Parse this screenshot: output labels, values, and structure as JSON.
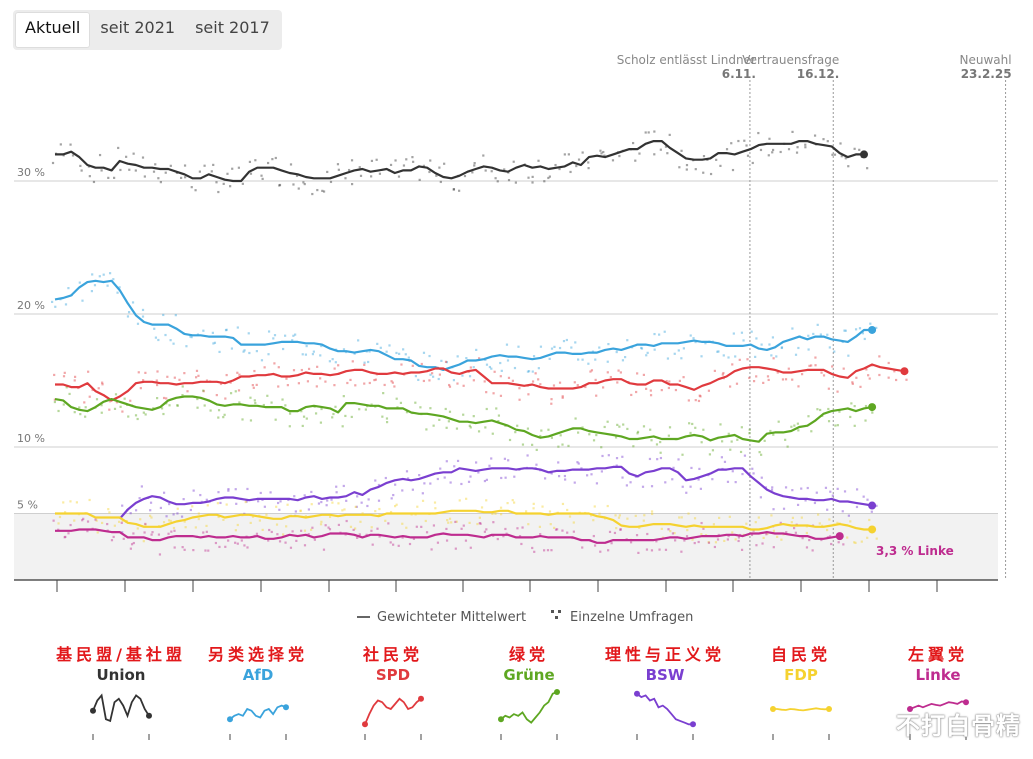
{
  "tabs": [
    {
      "label": "Aktuell",
      "active": true
    },
    {
      "label": "seit 2021",
      "active": false
    },
    {
      "label": "seit 2017",
      "active": false
    }
  ],
  "legend": {
    "line_label": "Gewichteter Mittelwert",
    "dots_label": "Einzelne Umfragen"
  },
  "end_label": "3,3 % Linke",
  "watermark": "不打白骨精",
  "chart_data": {
    "type": "line",
    "ylim": [
      0,
      33
    ],
    "y_ticks": [
      {
        "value": 5,
        "label": "5 %"
      },
      {
        "value": 10,
        "label": "10 %"
      },
      {
        "value": 20,
        "label": "20 %"
      },
      {
        "value": 30,
        "label": "30 %"
      }
    ],
    "shaded_below": 5,
    "events": [
      {
        "title": "Scholz entlässt Lindner",
        "date": "6.11.",
        "x": 0.859,
        "style": "dotted"
      },
      {
        "title": "Vertrauensfrage",
        "date": "16.12.",
        "x": 0.962,
        "style": "dotted"
      },
      {
        "title": "Neuwahl",
        "date": "23.2.25",
        "x": 1.175,
        "style": "dotted"
      }
    ],
    "series": [
      {
        "name": "Union",
        "color": "#333333",
        "values": [
          32,
          32,
          32.2,
          31.8,
          31.2,
          31,
          31,
          30.8,
          31.5,
          31.3,
          31.2,
          31,
          31,
          30.9,
          30.9,
          30.7,
          30.5,
          30.2,
          30.2,
          30.5,
          30.3,
          30.1,
          30,
          30,
          30.7,
          31,
          31,
          31,
          30.8,
          30.6,
          30.5,
          30.3,
          30.2,
          30.2,
          30.2,
          30.4,
          30.6,
          30.8,
          30.9,
          30.7,
          30.8,
          30.9,
          30.6,
          30.8,
          30.8,
          31.1,
          31,
          30.6,
          30.3,
          30.2,
          30.4,
          30.7,
          30.9,
          31.1,
          31,
          30.8,
          30.7,
          31,
          31.2,
          31,
          31.1,
          30.9,
          31,
          31.1,
          31.4,
          31.2,
          31.8,
          31.9,
          31.8,
          32,
          32.2,
          32.4,
          32.4,
          32.8,
          33,
          33,
          32.5,
          32.1,
          31.7,
          31.6,
          31.6,
          31.7,
          32.1,
          32.1,
          32,
          32.2,
          32.4,
          32.7,
          32.8,
          32.8,
          32.8,
          32.8,
          33,
          33,
          32.8,
          32.7,
          32.6,
          32.1,
          31.8,
          32,
          32
        ]
      },
      {
        "name": "AfD",
        "color": "#3aa3dc",
        "values": [
          21.1,
          21.2,
          21.4,
          22,
          22.4,
          22.5,
          22.4,
          22.5,
          21.8,
          20.8,
          19.9,
          19.4,
          19.2,
          19.2,
          19.2,
          18.9,
          18.5,
          18.4,
          18.4,
          18.3,
          18.3,
          18.3,
          18.2,
          17.7,
          17.7,
          17.7,
          17.7,
          17.8,
          17.9,
          17.9,
          17.9,
          17.8,
          17.8,
          17.7,
          17.4,
          17.2,
          17.2,
          17.1,
          17.2,
          17.3,
          17.2,
          16.9,
          16.6,
          16.6,
          16.5,
          16.1,
          16,
          16,
          15.8,
          16,
          16.2,
          16.5,
          16.5,
          16.6,
          16.8,
          16.9,
          16.8,
          16.8,
          16.7,
          16.6,
          16.7,
          16.9,
          17.1,
          17.1,
          17,
          17,
          17.1,
          17.1,
          17.3,
          17.4,
          17.3,
          17.5,
          17.7,
          17.7,
          17.6,
          17.8,
          17.8,
          17.8,
          17.9,
          18,
          17.9,
          17.9,
          17.8,
          17.6,
          17.6,
          17.6,
          17.7,
          17.4,
          17.3,
          17.5,
          17.9,
          18.1,
          18.3,
          18.1,
          18.3,
          18.3,
          18.1,
          18,
          17.9,
          18.3,
          18.8,
          18.8
        ]
      },
      {
        "name": "SPD",
        "color": "#e03a3e",
        "values": [
          14.7,
          14.7,
          14.5,
          14.5,
          14.8,
          14.2,
          13.9,
          13.5,
          13.8,
          14.2,
          14.8,
          14.9,
          14.9,
          14.8,
          14.8,
          14.7,
          14.8,
          14.8,
          14.9,
          14.9,
          14.9,
          14.8,
          15,
          15.3,
          15.3,
          15.4,
          15.4,
          15.5,
          15.3,
          15.3,
          15.4,
          15.6,
          15.5,
          15.5,
          15.4,
          15.5,
          15.7,
          15.8,
          15.8,
          15.6,
          15.5,
          15.5,
          15.6,
          15.5,
          15.6,
          15.6,
          15.7,
          15.9,
          15.9,
          15.6,
          15.5,
          15.7,
          15.8,
          15.3,
          14.8,
          14.8,
          14.8,
          14.7,
          14.6,
          14.7,
          14.5,
          14.4,
          14.4,
          14.4,
          14.4,
          14.5,
          14.8,
          14.8,
          15,
          15.1,
          15.1,
          14.8,
          14.7,
          14.7,
          15,
          15,
          14.7,
          14.7,
          14.5,
          14.3,
          14.6,
          14.8,
          15.1,
          15.3,
          15.7,
          15.9,
          16,
          16,
          15.9,
          15.8,
          15.6,
          15.6,
          15.7,
          15.8,
          15.8,
          15.8,
          15.5,
          15.3,
          15.2,
          15.7,
          15.9,
          16.2,
          16,
          15.9,
          15.8,
          15.7
        ]
      },
      {
        "name": "Grüne",
        "color": "#5ea722",
        "values": [
          13.6,
          13.5,
          13,
          12.8,
          12.7,
          13,
          13.4,
          13.6,
          13.4,
          13.2,
          13,
          12.9,
          12.8,
          13,
          13.5,
          13.7,
          13.8,
          13.8,
          13.7,
          13.5,
          13.2,
          13.1,
          13.2,
          13.2,
          13.1,
          13.1,
          13,
          13,
          13,
          12.7,
          12.7,
          13,
          13.1,
          13,
          12.9,
          12.6,
          13.3,
          13.3,
          13.2,
          13.1,
          13.1,
          12.9,
          12.9,
          12.9,
          12.6,
          12.5,
          12.5,
          12.4,
          12.3,
          12.1,
          11.9,
          11.9,
          11.8,
          11.9,
          12,
          11.8,
          11.6,
          11.3,
          11.2,
          10.9,
          10.7,
          10.8,
          11,
          11.2,
          11.4,
          11.4,
          11.2,
          11.1,
          11,
          10.9,
          10.8,
          10.6,
          10.6,
          10.7,
          10.8,
          10.6,
          10.6,
          10.6,
          10.8,
          10.9,
          10.8,
          10.5,
          10.7,
          10.8,
          10.9,
          10.6,
          10.5,
          10.4,
          11,
          11.1,
          11.1,
          11.2,
          11.5,
          11.6,
          12,
          12.5,
          12.7,
          12.8,
          12.9,
          12.7,
          12.9,
          13
        ]
      },
      {
        "name": "BSW",
        "color": "#7a3fd0",
        "values": [
          null,
          null,
          null,
          null,
          null,
          null,
          null,
          null,
          4.6,
          5.3,
          5.8,
          6.1,
          6.3,
          6.2,
          5.9,
          5.7,
          5.7,
          5.8,
          5.8,
          5.9,
          6.1,
          6.2,
          6.2,
          6.1,
          6,
          6.1,
          6.1,
          6.1,
          6.1,
          6.1,
          6,
          6.2,
          6.3,
          6.1,
          6.2,
          6.2,
          6.3,
          6.6,
          6.4,
          6.8,
          7,
          7.3,
          7.5,
          7.6,
          7.5,
          7.6,
          7.8,
          8,
          8.1,
          8.1,
          8.4,
          8.3,
          8.2,
          8.3,
          8.4,
          8.4,
          8.4,
          8.3,
          8.4,
          8.4,
          8.3,
          8.1,
          8.2,
          8.2,
          8.3,
          8.3,
          8.3,
          8.4,
          8.4,
          8.5,
          8.5,
          8,
          7.8,
          8.1,
          8.2,
          8.4,
          8.4,
          8.1,
          7.5,
          7.6,
          7.8,
          8,
          8.3,
          8.3,
          8.4,
          8.4,
          7.8,
          7.3,
          6.8,
          6.5,
          6.3,
          6.2,
          6.1,
          6.1,
          6,
          6,
          6.1,
          5.9,
          5.9,
          5.8,
          5.7,
          5.6
        ]
      },
      {
        "name": "FDP",
        "color": "#f5d230",
        "values": [
          5,
          5,
          5,
          5,
          5,
          4.7,
          4.7,
          4.7,
          4.7,
          4.3,
          4.2,
          4,
          4,
          4,
          4.2,
          4.4,
          4.5,
          4.7,
          4.8,
          4.9,
          4.9,
          4.7,
          4.8,
          4.9,
          4.9,
          4.8,
          4.7,
          4.6,
          4.6,
          4.8,
          4.8,
          4.7,
          4.8,
          4.9,
          4.9,
          4.8,
          4.9,
          4.9,
          4.9,
          4.9,
          4.8,
          5,
          5,
          5,
          5,
          5,
          5,
          5,
          5.1,
          5.2,
          5.2,
          5.2,
          5.2,
          5.1,
          5.1,
          5.2,
          5.2,
          5,
          5,
          5,
          5,
          4.9,
          5,
          5,
          5,
          5,
          5,
          4.8,
          4.7,
          4.5,
          4.1,
          4,
          4,
          4.1,
          4.2,
          4.2,
          4.2,
          4.1,
          4,
          4.1,
          4,
          4,
          4,
          4,
          4,
          4,
          3.8,
          3.8,
          3.9,
          4.1,
          4.2,
          4.1,
          4.1,
          4.1,
          4,
          4,
          4.1,
          4.2,
          4.1,
          3.9,
          3.8,
          3.8
        ]
      },
      {
        "name": "Linke",
        "color": "#be2c8f",
        "values": [
          3.7,
          3.7,
          3.7,
          3.8,
          3.8,
          3.8,
          3.7,
          3.6,
          3.6,
          3.2,
          3.2,
          3.2,
          3,
          3,
          3.2,
          3.3,
          3.3,
          3.3,
          3.2,
          3.3,
          3.2,
          3.2,
          3.3,
          3.2,
          3.2,
          3.3,
          3.1,
          3.1,
          3.2,
          3.4,
          3.3,
          3.4,
          3.2,
          3.3,
          3.5,
          3.5,
          3.5,
          3.4,
          3.2,
          3.4,
          3.4,
          3.3,
          3.2,
          3.3,
          3.2,
          3.2,
          3.2,
          3.4,
          3.5,
          3.4,
          3.4,
          3.4,
          3.3,
          3.2,
          3.4,
          3.4,
          3.4,
          3.2,
          3.2,
          3.2,
          3.3,
          3.2,
          3.2,
          3.2,
          3.2,
          3,
          3,
          2.8,
          2.8,
          3,
          3,
          3,
          3,
          3,
          3,
          3.1,
          3.2,
          3.2,
          3.1,
          3.2,
          3.3,
          3.3,
          3.3,
          3.4,
          3.4,
          3.3,
          3.5,
          3.5,
          3.6,
          3.5,
          3.5,
          3.4,
          3.3,
          3.3,
          3.1,
          3.1,
          3.2,
          3.3
        ]
      }
    ]
  },
  "party_legend": [
    {
      "cn": "基民盟/基社盟",
      "name": "Union",
      "color": "#333333",
      "spark": [
        0.45,
        0.75,
        0.9,
        0.2,
        0.15,
        0.7,
        0.8,
        0.6,
        0.3,
        0.7,
        0.9,
        0.8,
        0.5,
        0.3
      ]
    },
    {
      "cn": "另类选择党",
      "name": "AfD",
      "color": "#3aa3dc",
      "spark": [
        0.2,
        0.3,
        0.35,
        0.3,
        0.5,
        0.45,
        0.3,
        0.25,
        0.45,
        0.5,
        0.35,
        0.55,
        0.6,
        0.55
      ]
    },
    {
      "cn": "社民党",
      "name": "SPD",
      "color": "#e03a3e",
      "spark": [
        0.05,
        0.35,
        0.6,
        0.75,
        0.7,
        0.55,
        0.5,
        0.65,
        0.8,
        0.7,
        0.5,
        0.55,
        0.7,
        0.8
      ]
    },
    {
      "cn": "绿党",
      "name": "Grüne",
      "color": "#5ea722",
      "spark": [
        0.2,
        0.3,
        0.25,
        0.35,
        0.3,
        0.4,
        0.2,
        0.1,
        0.25,
        0.4,
        0.6,
        0.7,
        0.95,
        1.0
      ]
    },
    {
      "cn": "理性与正义党",
      "name": "BSW",
      "color": "#7a3fd0",
      "spark": [
        0.95,
        0.85,
        0.9,
        0.75,
        0.8,
        0.55,
        0.6,
        0.5,
        0.35,
        0.2,
        0.15,
        0.1,
        0.05,
        0.05
      ]
    },
    {
      "cn": "自民党",
      "name": "FDP",
      "color": "#f5d230",
      "spark": [
        0.5,
        0.5,
        0.48,
        0.47,
        0.5,
        0.49,
        0.47,
        0.46,
        0.48,
        0.5,
        0.52,
        0.5,
        0.49,
        0.5
      ]
    },
    {
      "cn": "左翼党",
      "name": "Linke",
      "color": "#be2c8f",
      "spark": [
        0.5,
        0.55,
        0.6,
        0.55,
        0.6,
        0.65,
        0.62,
        0.6,
        0.65,
        0.7,
        0.68,
        0.65,
        0.72,
        0.7
      ]
    }
  ]
}
